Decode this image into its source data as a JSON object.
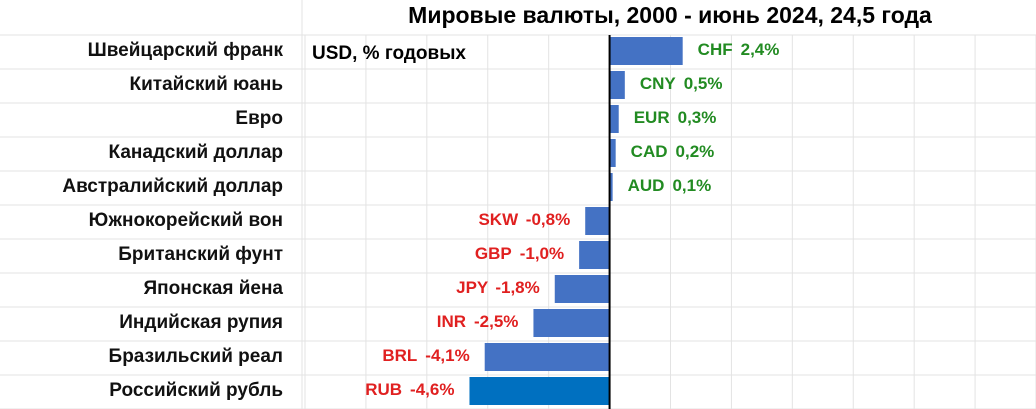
{
  "chart_data": {
    "type": "hbar",
    "title": "Мировые валюты, 2000 - июнь 2024, 24,5 года",
    "subtitle": "USD, % годовых",
    "categories": [
      "Швейцарский франк",
      "Китайский юань",
      "Евро",
      "Канадский доллар",
      "Австралийский доллар",
      "Южнокорейский вон",
      "Британский фунт",
      "Японская йена",
      "Индийская рупия",
      "Бразильский реал",
      "Российский рубль"
    ],
    "codes": [
      "CHF",
      "CNY",
      "EUR",
      "CAD",
      "AUD",
      "SKW",
      "GBP",
      "JPY",
      "INR",
      "BRL",
      "RUB"
    ],
    "values": [
      2.4,
      0.5,
      0.3,
      0.2,
      0.1,
      -0.8,
      -1.0,
      -1.8,
      -2.5,
      -4.1,
      -4.6
    ],
    "value_labels": [
      "2,4%",
      "0,5%",
      "0,3%",
      "0,2%",
      "0,1%",
      "-0,8%",
      "-1,0%",
      "-1,8%",
      "-2,5%",
      "-4,1%",
      "-4,6%"
    ],
    "colors": [
      "#4472c4",
      "#4472c4",
      "#4472c4",
      "#4472c4",
      "#4472c4",
      "#4472c4",
      "#4472c4",
      "#4472c4",
      "#4472c4",
      "#4472c4",
      "#0070c0"
    ],
    "positive_label_color": "#228b22",
    "negative_label_color": "#e02020",
    "xlim": [
      -10,
      14
    ],
    "xticks": [
      -10,
      -8,
      -6,
      -4,
      -2,
      0,
      2,
      4,
      6,
      8,
      10,
      12,
      14
    ],
    "grid": true
  }
}
